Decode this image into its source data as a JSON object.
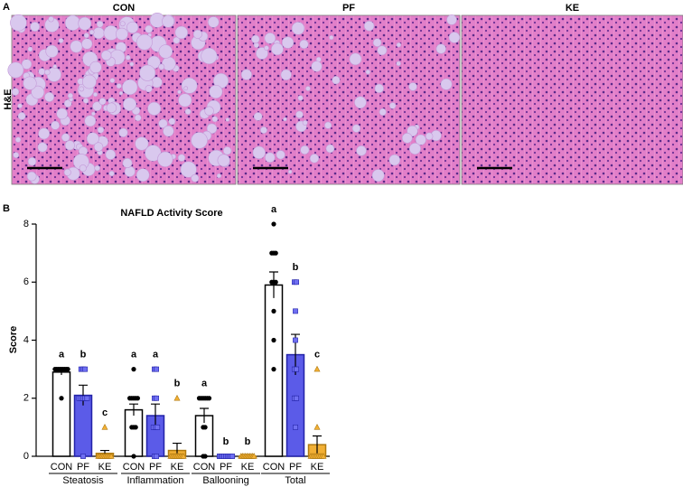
{
  "panel_a": {
    "label": "A",
    "row_label": "H&E",
    "images": [
      {
        "title": "CON"
      },
      {
        "title": "PF"
      },
      {
        "title": "KE"
      }
    ]
  },
  "chart_data": {
    "type": "bar",
    "panel_label": "B",
    "title": "NAFLD Activity Score",
    "y_label": "Score",
    "categories": [
      "Steatosis",
      "Inflammation",
      "Ballooning",
      "Total"
    ],
    "ylim": [
      0,
      8
    ],
    "yticks": [
      0,
      2,
      4,
      6,
      8
    ],
    "series": [
      {
        "name": "CON",
        "color": "#ffffff",
        "edge": "#000000",
        "marker": "circle",
        "marker_color": "#000000",
        "values": [
          2.9,
          1.6,
          1.4,
          5.9
        ],
        "errors": [
          0.1,
          0.2,
          0.25,
          0.45
        ],
        "significance": [
          "a",
          "a",
          "a",
          "a"
        ],
        "points": [
          [
            3,
            3,
            3,
            3,
            3,
            3,
            3,
            3,
            3,
            2
          ],
          [
            3,
            2,
            2,
            2,
            2,
            2,
            1,
            1,
            1,
            0
          ],
          [
            2,
            2,
            2,
            2,
            2,
            2,
            1,
            1,
            0,
            0
          ],
          [
            8,
            7,
            7,
            7,
            6,
            6,
            6,
            5,
            4,
            3
          ]
        ]
      },
      {
        "name": "PF",
        "color": "#5b5be8",
        "edge": "#2323a8",
        "marker": "square",
        "marker_color": "#6f6ff2",
        "values": [
          2.1,
          1.4,
          0,
          3.5
        ],
        "errors": [
          0.35,
          0.4,
          0,
          0.7
        ],
        "significance": [
          "b",
          "a",
          "b",
          "b"
        ],
        "points": [
          [
            3,
            3,
            3,
            2,
            2,
            2,
            2,
            2,
            0
          ],
          [
            3,
            3,
            2,
            2,
            1,
            1,
            1,
            0,
            0
          ],
          [
            0,
            0,
            0,
            0,
            0,
            0,
            0,
            0,
            0
          ],
          [
            6,
            6,
            5,
            4,
            3,
            3,
            2,
            2,
            1
          ]
        ]
      },
      {
        "name": "KE",
        "color": "#f2b035",
        "edge": "#b07a10",
        "marker": "triangle",
        "marker_color": "#f2b035",
        "values": [
          0.1,
          0.2,
          0,
          0.4
        ],
        "errors": [
          0.1,
          0.25,
          0,
          0.3
        ],
        "significance": [
          "c",
          "b",
          "b",
          "c"
        ],
        "points": [
          [
            0,
            0,
            0,
            0,
            0,
            0,
            0,
            0,
            0,
            1
          ],
          [
            2,
            0,
            0,
            0,
            0,
            0,
            0,
            0,
            0,
            0
          ],
          [
            0,
            0,
            0,
            0,
            0,
            0,
            0,
            0,
            0,
            0
          ],
          [
            3,
            1,
            0,
            0,
            0,
            0,
            0,
            0,
            0,
            0
          ]
        ]
      }
    ]
  }
}
